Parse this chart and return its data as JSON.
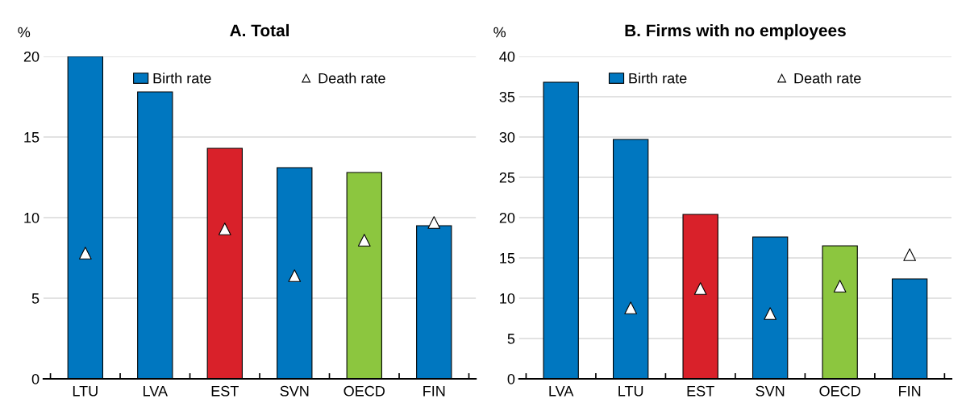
{
  "chart_data": [
    {
      "type": "bar",
      "title": "A. Total",
      "ylabel": "%",
      "categories": [
        "LTU",
        "LVA",
        "EST",
        "SVN",
        "OECD",
        "FIN"
      ],
      "ylim": [
        0,
        20
      ],
      "yticks": [
        0,
        5,
        10,
        15,
        20
      ],
      "grid": "y",
      "legend": "top",
      "series": [
        {
          "name": "Birth rate",
          "color": "#0077c0",
          "colors": [
            "#0077c0",
            "#0077c0",
            "#d9212a",
            "#0077c0",
            "#8cc63f",
            "#0077c0"
          ],
          "values": [
            20.0,
            17.8,
            14.3,
            13.1,
            12.8,
            9.5
          ]
        },
        {
          "name": "Death rate",
          "type": "scatter",
          "color": "#ffffff",
          "marker": "triangle",
          "x": [
            "LTU",
            "LVA",
            "EST",
            "SVN",
            "OECD",
            "FIN"
          ],
          "values": [
            7.8,
            null,
            9.3,
            6.4,
            8.6,
            9.7
          ]
        }
      ]
    },
    {
      "type": "bar",
      "title": "B. Firms with no employees",
      "ylabel": "%",
      "categories": [
        "LVA",
        "LTU",
        "EST",
        "SVN",
        "OECD",
        "FIN"
      ],
      "ylim": [
        0,
        40
      ],
      "yticks": [
        0,
        5,
        10,
        15,
        20,
        25,
        30,
        35,
        40
      ],
      "grid": "y",
      "legend": "top",
      "series": [
        {
          "name": "Birth rate",
          "color": "#0077c0",
          "colors": [
            "#0077c0",
            "#0077c0",
            "#d9212a",
            "#0077c0",
            "#8cc63f",
            "#0077c0"
          ],
          "values": [
            36.8,
            29.7,
            20.4,
            17.6,
            16.5,
            12.4
          ]
        },
        {
          "name": "Death rate",
          "type": "scatter",
          "color": "#ffffff",
          "marker": "triangle",
          "x": [
            "LVA",
            "LTU",
            "EST",
            "SVN",
            "OECD",
            "FIN"
          ],
          "values": [
            null,
            8.8,
            11.2,
            8.1,
            11.5,
            15.4
          ]
        }
      ]
    }
  ]
}
